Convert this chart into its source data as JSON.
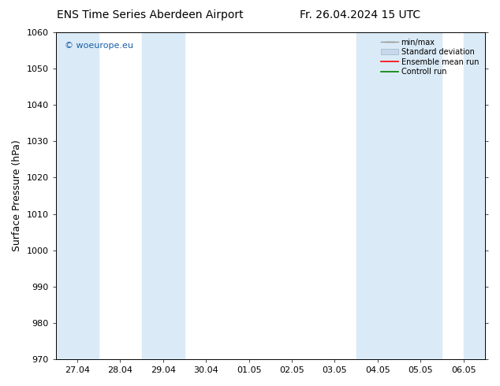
{
  "title_left": "ENS Time Series Aberdeen Airport",
  "title_right": "Fr. 26.04.2024 15 UTC",
  "ylabel": "Surface Pressure (hPa)",
  "ylim": [
    970,
    1060
  ],
  "yticks": [
    970,
    980,
    990,
    1000,
    1010,
    1020,
    1030,
    1040,
    1050,
    1060
  ],
  "x_tick_labels": [
    "27.04",
    "28.04",
    "29.04",
    "30.04",
    "01.05",
    "02.05",
    "03.05",
    "04.05",
    "05.05",
    "06.05"
  ],
  "x_tick_positions": [
    0,
    1,
    2,
    3,
    4,
    5,
    6,
    7,
    8,
    9
  ],
  "xlim": [
    -0.5,
    9.5
  ],
  "shaded_bands": [
    {
      "x_start": -0.5,
      "x_end": 0.5,
      "color": "#daeaf7"
    },
    {
      "x_start": 1.5,
      "x_end": 2.5,
      "color": "#daeaf7"
    },
    {
      "x_start": 6.5,
      "x_end": 8.5,
      "color": "#daeaf7"
    },
    {
      "x_start": 9.0,
      "x_end": 9.5,
      "color": "#daeaf7"
    }
  ],
  "watermark_text": "© woeurope.eu",
  "watermark_color": "#1a5fa8",
  "legend_entries": [
    {
      "label": "min/max",
      "color": "#aaaaaa",
      "type": "errorbar"
    },
    {
      "label": "Standard deviation",
      "color": "#c8d8ea",
      "type": "bar"
    },
    {
      "label": "Ensemble mean run",
      "color": "red",
      "type": "line"
    },
    {
      "label": "Controll run",
      "color": "green",
      "type": "line"
    }
  ],
  "background_color": "#ffffff",
  "plot_bg_color": "#ffffff",
  "title_fontsize": 10,
  "axis_label_fontsize": 9,
  "tick_fontsize": 8,
  "watermark_fontsize": 8,
  "legend_fontsize": 7
}
